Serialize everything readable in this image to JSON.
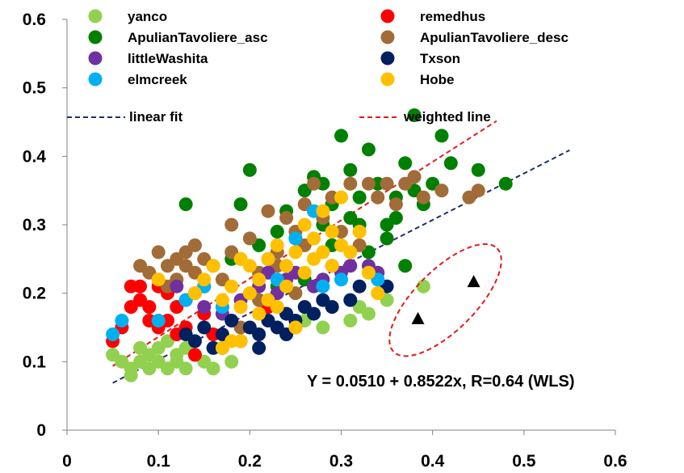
{
  "chart_data": {
    "type": "scatter",
    "title": "",
    "xlabel": "",
    "ylabel": "",
    "xlim": [
      0,
      0.6
    ],
    "ylim": [
      0,
      0.6
    ],
    "xticks": [
      "0",
      "0.1",
      "0.2",
      "0.3",
      "0.4",
      "0.5",
      "0.6"
    ],
    "yticks": [
      "0",
      "0.1",
      "0.2",
      "0.3",
      "0.4",
      "0.5",
      "0.6"
    ],
    "grid": false,
    "legend_position": "top",
    "annotation": "Y = 0.0510 + 0.8522x, R=0.64 (WLS)",
    "series": [
      {
        "name": "yanco",
        "color": "#92d050",
        "points": [
          [
            0.05,
            0.11
          ],
          [
            0.06,
            0.1
          ],
          [
            0.07,
            0.09
          ],
          [
            0.07,
            0.08
          ],
          [
            0.08,
            0.1
          ],
          [
            0.08,
            0.12
          ],
          [
            0.09,
            0.09
          ],
          [
            0.09,
            0.11
          ],
          [
            0.1,
            0.1
          ],
          [
            0.1,
            0.12
          ],
          [
            0.11,
            0.09
          ],
          [
            0.11,
            0.13
          ],
          [
            0.12,
            0.11
          ],
          [
            0.12,
            0.1
          ],
          [
            0.13,
            0.12
          ],
          [
            0.13,
            0.09
          ],
          [
            0.14,
            0.11
          ],
          [
            0.15,
            0.1
          ],
          [
            0.16,
            0.09
          ],
          [
            0.18,
            0.1
          ],
          [
            0.31,
            0.16
          ],
          [
            0.32,
            0.18
          ],
          [
            0.33,
            0.17
          ],
          [
            0.35,
            0.19
          ],
          [
            0.39,
            0.21
          ],
          [
            0.26,
            0.16
          ],
          [
            0.24,
            0.17
          ],
          [
            0.28,
            0.15
          ]
        ]
      },
      {
        "name": "remedhus",
        "color": "#ff0000",
        "points": [
          [
            0.05,
            0.13
          ],
          [
            0.06,
            0.15
          ],
          [
            0.07,
            0.18
          ],
          [
            0.07,
            0.21
          ],
          [
            0.08,
            0.19
          ],
          [
            0.08,
            0.21
          ],
          [
            0.09,
            0.18
          ],
          [
            0.09,
            0.16
          ],
          [
            0.1,
            0.15
          ],
          [
            0.1,
            0.21
          ],
          [
            0.11,
            0.16
          ],
          [
            0.11,
            0.2
          ],
          [
            0.12,
            0.14
          ],
          [
            0.12,
            0.18
          ],
          [
            0.13,
            0.15
          ],
          [
            0.14,
            0.11
          ],
          [
            0.15,
            0.17
          ],
          [
            0.16,
            0.14
          ],
          [
            0.17,
            0.12
          ],
          [
            0.25,
            0.15
          ],
          [
            0.22,
            0.18
          ]
        ]
      },
      {
        "name": "ApulianTavoliere_asc",
        "color": "#008000",
        "points": [
          [
            0.13,
            0.33
          ],
          [
            0.19,
            0.33
          ],
          [
            0.2,
            0.38
          ],
          [
            0.21,
            0.27
          ],
          [
            0.22,
            0.25
          ],
          [
            0.23,
            0.29
          ],
          [
            0.24,
            0.32
          ],
          [
            0.25,
            0.28
          ],
          [
            0.26,
            0.35
          ],
          [
            0.27,
            0.37
          ],
          [
            0.28,
            0.3
          ],
          [
            0.28,
            0.36
          ],
          [
            0.29,
            0.33
          ],
          [
            0.3,
            0.43
          ],
          [
            0.31,
            0.31
          ],
          [
            0.31,
            0.38
          ],
          [
            0.32,
            0.34
          ],
          [
            0.32,
            0.3
          ],
          [
            0.33,
            0.41
          ],
          [
            0.33,
            0.26
          ],
          [
            0.34,
            0.36
          ],
          [
            0.35,
            0.3
          ],
          [
            0.35,
            0.28
          ],
          [
            0.36,
            0.34
          ],
          [
            0.36,
            0.31
          ],
          [
            0.37,
            0.39
          ],
          [
            0.37,
            0.24
          ],
          [
            0.38,
            0.35
          ],
          [
            0.39,
            0.33
          ],
          [
            0.4,
            0.36
          ],
          [
            0.41,
            0.43
          ],
          [
            0.42,
            0.39
          ],
          [
            0.45,
            0.38
          ],
          [
            0.48,
            0.36
          ],
          [
            0.23,
            0.21
          ],
          [
            0.26,
            0.22
          ],
          [
            0.15,
            0.21
          ],
          [
            0.18,
            0.25
          ],
          [
            0.29,
            0.27
          ],
          [
            0.38,
            0.46
          ]
        ]
      },
      {
        "name": "ApulianTavoliere_desc",
        "color": "#a16c38",
        "points": [
          [
            0.08,
            0.24
          ],
          [
            0.09,
            0.23
          ],
          [
            0.1,
            0.26
          ],
          [
            0.11,
            0.24
          ],
          [
            0.11,
            0.21
          ],
          [
            0.12,
            0.25
          ],
          [
            0.12,
            0.22
          ],
          [
            0.13,
            0.26
          ],
          [
            0.13,
            0.24
          ],
          [
            0.14,
            0.27
          ],
          [
            0.14,
            0.23
          ],
          [
            0.15,
            0.25
          ],
          [
            0.16,
            0.24
          ],
          [
            0.17,
            0.22
          ],
          [
            0.18,
            0.3
          ],
          [
            0.18,
            0.26
          ],
          [
            0.19,
            0.25
          ],
          [
            0.2,
            0.28
          ],
          [
            0.21,
            0.23
          ],
          [
            0.22,
            0.32
          ],
          [
            0.23,
            0.26
          ],
          [
            0.24,
            0.31
          ],
          [
            0.25,
            0.29
          ],
          [
            0.26,
            0.33
          ],
          [
            0.26,
            0.27
          ],
          [
            0.27,
            0.36
          ],
          [
            0.28,
            0.31
          ],
          [
            0.29,
            0.34
          ],
          [
            0.3,
            0.29
          ],
          [
            0.31,
            0.36
          ],
          [
            0.32,
            0.27
          ],
          [
            0.33,
            0.36
          ],
          [
            0.34,
            0.34
          ],
          [
            0.35,
            0.36
          ],
          [
            0.36,
            0.33
          ],
          [
            0.37,
            0.36
          ],
          [
            0.38,
            0.37
          ],
          [
            0.39,
            0.34
          ],
          [
            0.41,
            0.35
          ],
          [
            0.44,
            0.34
          ],
          [
            0.45,
            0.35
          ],
          [
            0.17,
            0.18
          ],
          [
            0.19,
            0.15
          ],
          [
            0.21,
            0.19
          ],
          [
            0.23,
            0.24
          ],
          [
            0.25,
            0.2
          ]
        ]
      },
      {
        "name": "littleWashita",
        "color": "#7030a0",
        "points": [
          [
            0.12,
            0.21
          ],
          [
            0.13,
            0.19
          ],
          [
            0.14,
            0.2
          ],
          [
            0.15,
            0.18
          ],
          [
            0.17,
            0.17
          ],
          [
            0.19,
            0.19
          ],
          [
            0.21,
            0.21
          ],
          [
            0.22,
            0.23
          ],
          [
            0.23,
            0.2
          ],
          [
            0.24,
            0.22
          ],
          [
            0.25,
            0.23
          ],
          [
            0.27,
            0.21
          ],
          [
            0.28,
            0.22
          ],
          [
            0.29,
            0.24
          ],
          [
            0.3,
            0.23
          ],
          [
            0.31,
            0.24
          ],
          [
            0.33,
            0.24
          ],
          [
            0.34,
            0.23
          ]
        ]
      },
      {
        "name": "Txson",
        "color": "#002060",
        "points": [
          [
            0.13,
            0.14
          ],
          [
            0.14,
            0.13
          ],
          [
            0.15,
            0.15
          ],
          [
            0.16,
            0.12
          ],
          [
            0.17,
            0.14
          ],
          [
            0.18,
            0.16
          ],
          [
            0.19,
            0.13
          ],
          [
            0.2,
            0.15
          ],
          [
            0.21,
            0.14
          ],
          [
            0.21,
            0.12
          ],
          [
            0.22,
            0.16
          ],
          [
            0.23,
            0.15
          ],
          [
            0.24,
            0.14
          ],
          [
            0.24,
            0.17
          ],
          [
            0.25,
            0.16
          ],
          [
            0.26,
            0.18
          ],
          [
            0.27,
            0.17
          ],
          [
            0.28,
            0.19
          ],
          [
            0.29,
            0.18
          ],
          [
            0.31,
            0.19
          ],
          [
            0.32,
            0.21
          ],
          [
            0.35,
            0.21
          ]
        ]
      },
      {
        "name": "elmcreek",
        "color": "#00b0f0",
        "points": [
          [
            0.05,
            0.14
          ],
          [
            0.06,
            0.16
          ],
          [
            0.1,
            0.16
          ],
          [
            0.13,
            0.19
          ],
          [
            0.15,
            0.21
          ],
          [
            0.17,
            0.18
          ],
          [
            0.23,
            0.22
          ],
          [
            0.25,
            0.28
          ],
          [
            0.27,
            0.32
          ],
          [
            0.28,
            0.21
          ],
          [
            0.3,
            0.22
          ],
          [
            0.34,
            0.22
          ]
        ]
      },
      {
        "name": "Hobe",
        "color": "#ffc000",
        "points": [
          [
            0.1,
            0.22
          ],
          [
            0.14,
            0.2
          ],
          [
            0.15,
            0.22
          ],
          [
            0.16,
            0.24
          ],
          [
            0.17,
            0.19
          ],
          [
            0.18,
            0.21
          ],
          [
            0.18,
            0.13
          ],
          [
            0.19,
            0.25
          ],
          [
            0.19,
            0.18
          ],
          [
            0.2,
            0.2
          ],
          [
            0.2,
            0.24
          ],
          [
            0.21,
            0.17
          ],
          [
            0.21,
            0.22
          ],
          [
            0.22,
            0.19
          ],
          [
            0.22,
            0.25
          ],
          [
            0.23,
            0.18
          ],
          [
            0.23,
            0.27
          ],
          [
            0.24,
            0.21
          ],
          [
            0.24,
            0.24
          ],
          [
            0.25,
            0.26
          ],
          [
            0.25,
            0.15
          ],
          [
            0.26,
            0.23
          ],
          [
            0.26,
            0.3
          ],
          [
            0.27,
            0.25
          ],
          [
            0.27,
            0.28
          ],
          [
            0.28,
            0.26
          ],
          [
            0.28,
            0.32
          ],
          [
            0.29,
            0.29
          ],
          [
            0.29,
            0.24
          ],
          [
            0.3,
            0.34
          ],
          [
            0.3,
            0.27
          ],
          [
            0.31,
            0.26
          ],
          [
            0.32,
            0.29
          ],
          [
            0.33,
            0.23
          ],
          [
            0.34,
            0.2
          ],
          [
            0.17,
            0.12
          ],
          [
            0.19,
            0.13
          ]
        ]
      }
    ],
    "lines": [
      {
        "name": "linear fit",
        "color": "#1f2d6b",
        "style": "dashed",
        "intercept": 0.035,
        "slope": 0.68,
        "x_range": [
          0.05,
          0.55
        ]
      },
      {
        "name": "weighted line",
        "color": "#e31a1c",
        "style": "dashed",
        "intercept": 0.051,
        "slope": 0.8522,
        "x_range": [
          0.05,
          0.47
        ]
      }
    ],
    "outlier_ellipse": {
      "color": "#e31a1c",
      "style": "dashed",
      "center": [
        0.414,
        0.19
      ],
      "width": 0.08,
      "height": 0.06,
      "rotation_deg": -45
    },
    "triangles": {
      "color": "#000000",
      "points": [
        [
          0.384,
          0.162
        ],
        [
          0.445,
          0.216
        ]
      ]
    }
  }
}
